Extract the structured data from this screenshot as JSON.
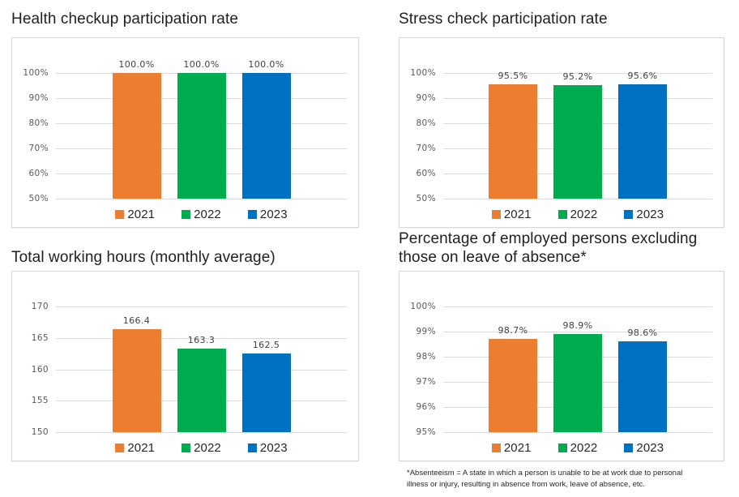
{
  "series_colors": {
    "2021": "#ED7D31",
    "2022": "#00AC50",
    "2023": "#0070C0"
  },
  "footnote": "*Absenteeism = A state in which a person is unable to be at work due to personal illness or injury, resulting in absence from work, leave of absence, etc.",
  "chart_data": [
    {
      "id": "health-checkup",
      "type": "bar",
      "title": "Health checkup participation rate",
      "categories": [
        "2021",
        "2022",
        "2023"
      ],
      "values": [
        100.0,
        100.0,
        100.0
      ],
      "value_labels": [
        "100.0%",
        "100.0%",
        "100.0%"
      ],
      "ylim": [
        50,
        100
      ],
      "yticks": [
        100,
        90,
        80,
        70,
        60,
        50
      ],
      "ytick_labels": [
        "100%",
        "90%",
        "80%",
        "70%",
        "60%",
        "50%"
      ],
      "legend": [
        "2021",
        "2022",
        "2023"
      ],
      "legend_position": "bottom",
      "grid": true
    },
    {
      "id": "stress-check",
      "type": "bar",
      "title": "Stress check participation rate",
      "categories": [
        "2021",
        "2022",
        "2023"
      ],
      "values": [
        95.5,
        95.2,
        95.6
      ],
      "value_labels": [
        "95.5%",
        "95.2%",
        "95.6%"
      ],
      "ylim": [
        50,
        100
      ],
      "yticks": [
        100,
        90,
        80,
        70,
        60,
        50
      ],
      "ytick_labels": [
        "100%",
        "90%",
        "80%",
        "70%",
        "60%",
        "50%"
      ],
      "legend": [
        "2021",
        "2022",
        "2023"
      ],
      "legend_position": "bottom",
      "grid": true
    },
    {
      "id": "total-working-hours",
      "type": "bar",
      "title": "Total working hours (monthly average)",
      "categories": [
        "2021",
        "2022",
        "2023"
      ],
      "values": [
        166.4,
        163.3,
        162.5
      ],
      "value_labels": [
        "166.4",
        "163.3",
        "162.5"
      ],
      "ylim": [
        150,
        170
      ],
      "yticks": [
        170,
        165,
        160,
        155,
        150
      ],
      "ytick_labels": [
        "170",
        "165",
        "160",
        "155",
        "150"
      ],
      "legend": [
        "2021",
        "2022",
        "2023"
      ],
      "legend_position": "bottom",
      "grid": true
    },
    {
      "id": "employed-persons",
      "type": "bar",
      "title": "Percentage of employed persons excluding those on leave of absence*",
      "categories": [
        "2021",
        "2022",
        "2023"
      ],
      "values": [
        98.7,
        98.9,
        98.6
      ],
      "value_labels": [
        "98.7%",
        "98.9%",
        "98.6%"
      ],
      "ylim": [
        95,
        100
      ],
      "yticks": [
        100,
        99,
        98,
        97,
        96,
        95
      ],
      "ytick_labels": [
        "100%",
        "99%",
        "98%",
        "97%",
        "96%",
        "95%"
      ],
      "legend": [
        "2021",
        "2022",
        "2023"
      ],
      "legend_position": "bottom",
      "grid": true
    }
  ]
}
